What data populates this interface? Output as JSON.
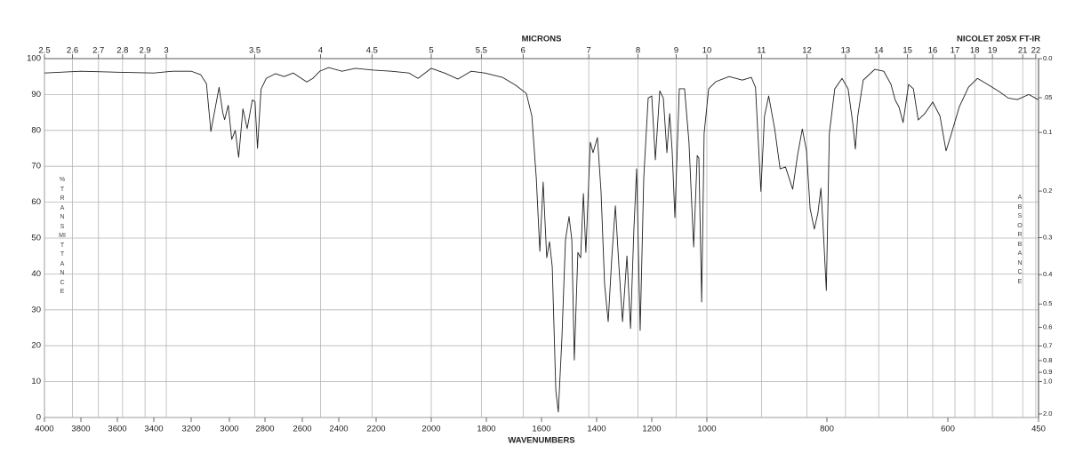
{
  "chart_data": {
    "type": "line",
    "instrument": "NICOLET 20SX FT-IR",
    "x_label": "WAVENUMBERS",
    "x2_label": "MICRONS",
    "y_label": "%TRANSMITTANCE",
    "y2_label": "ABSORBANCE",
    "color": "#222222",
    "grid": true,
    "xlim": [
      4000,
      450
    ],
    "xticks": [
      4000,
      3800,
      3600,
      3400,
      3200,
      3000,
      2800,
      2600,
      2400,
      2200,
      2000,
      1800,
      1600,
      1400,
      1200,
      1000,
      800,
      600,
      450
    ],
    "x2lim": [
      2.5,
      22
    ],
    "x2ticks": [
      2.5,
      2.6,
      2.7,
      2.8,
      2.9,
      3,
      3.5,
      4,
      4.5,
      5,
      5.5,
      6,
      7,
      8,
      9,
      10,
      11,
      12,
      13,
      14,
      15,
      16,
      17,
      18,
      19,
      21,
      22
    ],
    "ylim": [
      0,
      100
    ],
    "yticks": [
      0,
      10,
      20,
      30,
      40,
      50,
      60,
      70,
      80,
      90,
      100
    ],
    "y2lim": [
      0,
      2
    ],
    "y2ticks": [
      {
        "value": 0,
        "label": "0.0"
      },
      {
        "value": 0.05,
        "label": ".05"
      },
      0.1,
      0.2,
      0.3,
      0.4,
      0.5,
      0.6,
      0.7,
      0.8,
      0.9,
      {
        "value": 1,
        "label": "1.0"
      },
      {
        "value": 2,
        "label": "2.0"
      }
    ],
    "x": [
      4000,
      3800,
      3600,
      3400,
      3300,
      3200,
      3150,
      3120,
      3097,
      3054,
      3035,
      3025,
      3006,
      2987,
      2967,
      2948,
      2924,
      2900,
      2871,
      2856,
      2842,
      2822,
      2793,
      2745,
      2697,
      2649,
      2576,
      2542,
      2504,
      2456,
      2383,
      2311,
      2214,
      2145,
      2081,
      2048,
      2000,
      1952,
      1903,
      1855,
      1806,
      1742,
      1694,
      1655,
      1635,
      1619,
      1606,
      1594,
      1581,
      1571,
      1561,
      1548,
      1539,
      1526,
      1513,
      1500,
      1490,
      1481,
      1468,
      1458,
      1448,
      1439,
      1423,
      1413,
      1397,
      1384,
      1371,
      1358,
      1345,
      1332,
      1319,
      1306,
      1290,
      1277,
      1265,
      1255,
      1242,
      1229,
      1213,
      1200,
      1187,
      1171,
      1158,
      1145,
      1135,
      1126,
      1116,
      1100,
      1081,
      1065,
      1048,
      1035,
      1029,
      1019,
      1010,
      997,
      985,
      963,
      941,
      926,
      919,
      910,
      904,
      897,
      887,
      878,
      869,
      857,
      849,
      841,
      834,
      828,
      821,
      815,
      810,
      806,
      801,
      796,
      787,
      775,
      765,
      757,
      753,
      749,
      740,
      721,
      706,
      694,
      687,
      681,
      674,
      665,
      657,
      649,
      638,
      625,
      613,
      603,
      596,
      581,
      566,
      551,
      534,
      515,
      500,
      485,
      466,
      451
    ],
    "values": [
      96,
      96.5,
      96.2,
      96,
      96.5,
      96.5,
      95.5,
      93,
      79.7,
      92,
      85,
      83,
      87,
      77.5,
      80,
      72.5,
      86,
      80.5,
      88.5,
      88,
      75,
      91.5,
      94.5,
      95.8,
      95,
      96,
      93.5,
      94.5,
      96.5,
      97.5,
      96.5,
      97.3,
      96.8,
      96.5,
      96,
      94.5,
      97.3,
      96,
      94.3,
      96.5,
      96,
      94.8,
      92.6,
      90.3,
      84,
      66.8,
      46.3,
      65.6,
      44.5,
      49,
      42,
      7.4,
      1.5,
      22,
      49.5,
      56,
      49.5,
      16,
      46,
      44.5,
      62.4,
      46,
      76.7,
      73.8,
      78,
      63,
      37,
      26.7,
      44.5,
      59,
      42,
      26.7,
      45,
      24.8,
      52,
      69.3,
      24.3,
      66.8,
      89,
      89.6,
      71.8,
      91,
      89,
      73.8,
      84.7,
      74.3,
      55.7,
      91.6,
      91.6,
      76.7,
      47.5,
      73,
      72.3,
      32.2,
      79.2,
      91.6,
      93.6,
      95,
      94,
      94.8,
      92,
      63,
      84,
      89.6,
      80.4,
      69.3,
      69.8,
      63.6,
      73,
      80.4,
      74.3,
      58.2,
      52.5,
      57,
      63.9,
      52,
      35.4,
      79.2,
      91.6,
      94.5,
      91.6,
      81.7,
      74.8,
      84,
      94,
      97,
      96.5,
      92.8,
      88.4,
      86.6,
      82.2,
      92.8,
      91.6,
      82.9,
      84.7,
      87.9,
      84,
      74.3,
      78,
      86.6,
      92,
      94.5,
      92.8,
      90.8,
      89,
      88.6,
      90,
      88.6
    ]
  }
}
